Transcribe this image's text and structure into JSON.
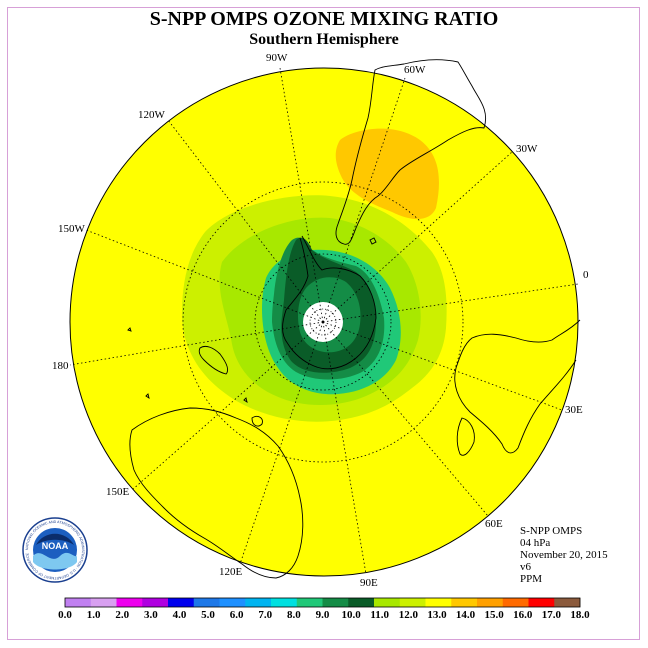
{
  "header": {
    "title": "S-NPP OMPS OZONE MIXING RATIO",
    "subtitle": "Southern Hemisphere"
  },
  "map": {
    "projection": "south-polar-stereographic",
    "longitude_labels": [
      "90W",
      "60W",
      "30W",
      "0",
      "30E",
      "60E",
      "90E",
      "120E",
      "150E",
      "180",
      "150W",
      "120W"
    ],
    "background_value_color": "#ffff00"
  },
  "info": {
    "instrument": "S-NPP OMPS",
    "level": "04 hPa",
    "date": "November 20, 2015",
    "version": "v6",
    "units": "PPM"
  },
  "colorbar": {
    "tick_labels": [
      "0.0",
      "1.0",
      "2.0",
      "3.0",
      "4.0",
      "5.0",
      "6.0",
      "7.0",
      "8.0",
      "9.0",
      "10.0",
      "11.0",
      "12.0",
      "13.0",
      "14.0",
      "15.0",
      "16.0",
      "17.0",
      "18.0"
    ],
    "colors": [
      "#c080f0",
      "#d8a0f0",
      "#ee00ee",
      "#b000e0",
      "#0000ee",
      "#1e78e8",
      "#1e90ff",
      "#00b4f0",
      "#00e0e0",
      "#20c878",
      "#148c46",
      "#0a5c28",
      "#a8e800",
      "#ccf000",
      "#ffff00",
      "#ffc800",
      "#ffa000",
      "#ff6a00",
      "#ff0000",
      "#8b5a3c"
    ]
  },
  "logo": {
    "text": "NOAA",
    "ring_text": "NATIONAL OCEANIC AND ATMOSPHERIC ADMINISTRATION · U.S. DEPARTMENT OF COMMERCE"
  }
}
